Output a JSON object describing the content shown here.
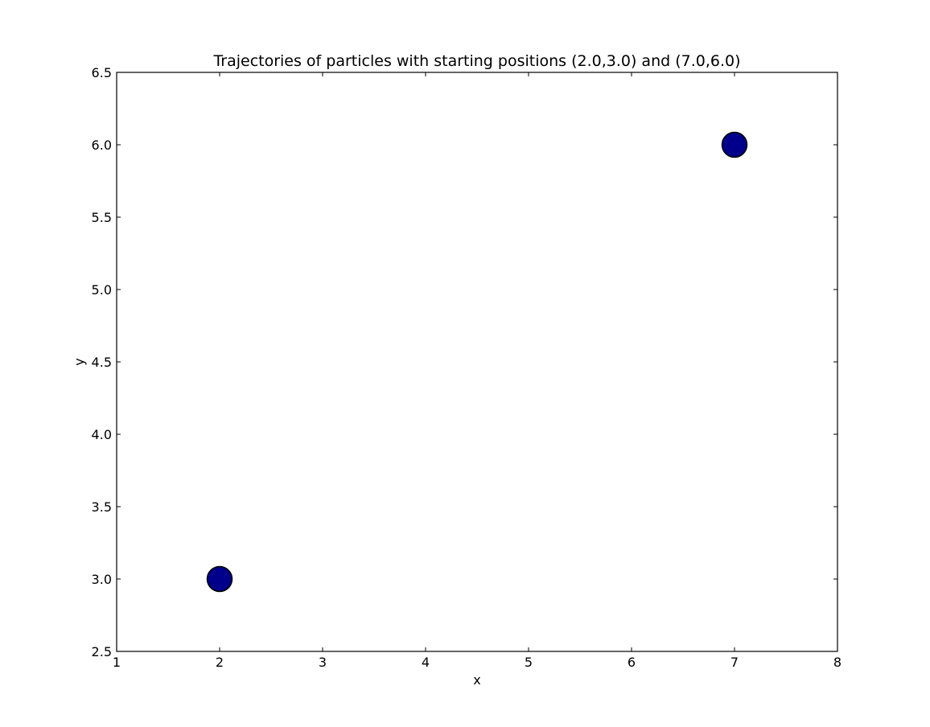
{
  "chart_data": {
    "type": "scatter",
    "title": "Trajectories of particles with starting positions (2.0,3.0) and (7.0,6.0)",
    "xlabel": "x",
    "ylabel": "y",
    "xlim": [
      1,
      8
    ],
    "ylim": [
      2.5,
      6.5
    ],
    "x_ticks": [
      "1",
      "2",
      "3",
      "4",
      "5",
      "6",
      "7",
      "8"
    ],
    "y_ticks": [
      "2.5",
      "3.0",
      "3.5",
      "4.0",
      "4.5",
      "5.0",
      "5.5",
      "6.0",
      "6.5"
    ],
    "grid": false,
    "series": [
      {
        "points": [
          {
            "x": 2.0,
            "y": 3.0
          },
          {
            "x": 7.0,
            "y": 6.0
          }
        ]
      }
    ],
    "marker_color": "#00008b",
    "marker_edge_color": "#000000"
  }
}
